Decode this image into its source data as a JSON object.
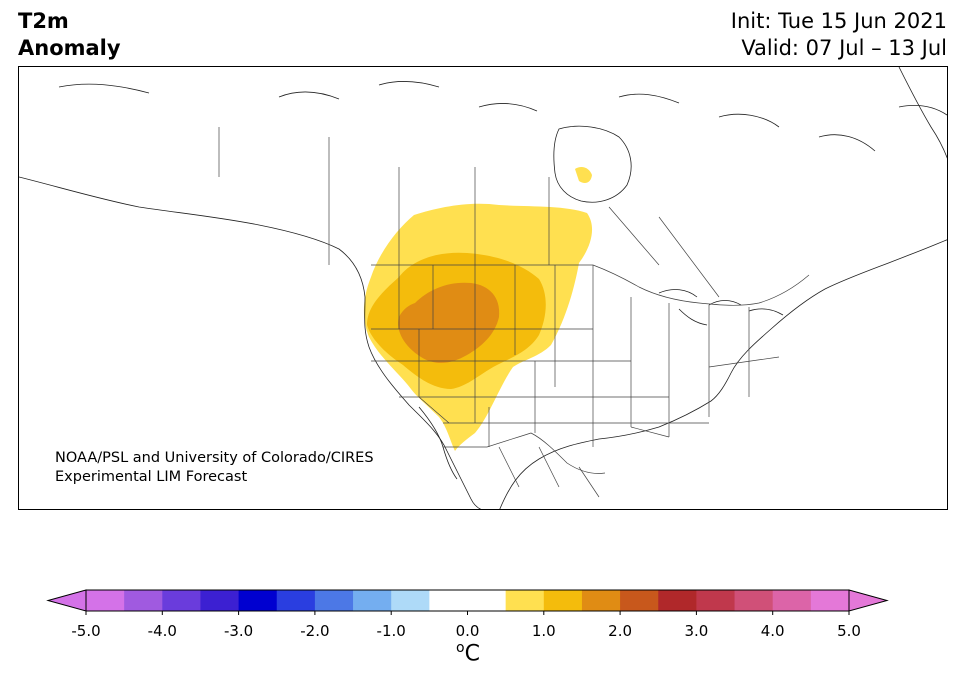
{
  "title": {
    "left_line1": "T2m",
    "left_line2": "Anomaly",
    "init": "Init: Tue 15 Jun 2021",
    "valid": "Valid: 07 Jul – 13 Jul"
  },
  "credit": {
    "line1": "NOAA/PSL and University of Colorado/CIRES",
    "line2": "Experimental LIM Forecast"
  },
  "colorbar": {
    "unit_sup": "o",
    "unit": "C",
    "ticks": [
      "-5.0",
      "-4.0",
      "-3.0",
      "-2.0",
      "-1.0",
      "0.0",
      "1.0",
      "2.0",
      "3.0",
      "4.0",
      "5.0"
    ],
    "levels": [
      -5.0,
      -4.5,
      -4.0,
      -3.5,
      -3.0,
      -2.5,
      -2.0,
      -1.5,
      -1.0,
      -0.5,
      0.5,
      1.0,
      1.5,
      2.0,
      2.5,
      3.0,
      3.5,
      4.0,
      4.5,
      5.0
    ],
    "colors": [
      "#d472e8",
      "#a05ae0",
      "#6a3cdc",
      "#3c20d2",
      "#0000d0",
      "#2a3ee0",
      "#4c78e6",
      "#74aef0",
      "#aedaf8",
      "#ffffff",
      "#ffe050",
      "#f4bc0c",
      "#e08c14",
      "#c8581c",
      "#b0282a",
      "#c0384c",
      "#d05078",
      "#dc64a8",
      "#e478d8"
    ],
    "extend_low_color": "#d472e8",
    "extend_high_color": "#e478d8"
  },
  "map": {
    "anomaly_colors": {
      "plus_0_5_to_1": "#ffe050",
      "plus_1_to_1_5": "#f4bc0c",
      "plus_1_5_to_2": "#e08c14"
    }
  }
}
